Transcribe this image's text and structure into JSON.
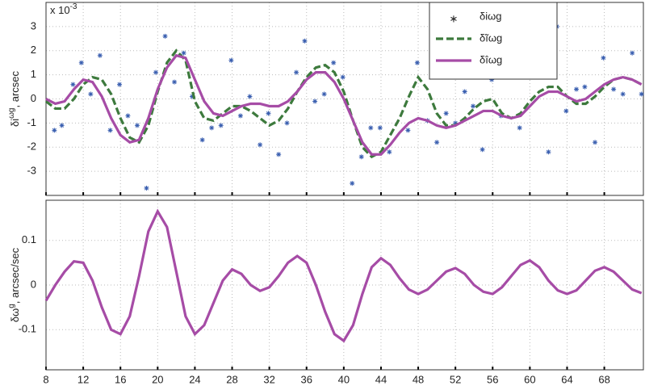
{
  "chart_data": [
    {
      "type": "line",
      "ylabel": {
        "base": "δi",
        "sup": "ωg",
        "rest": ", arcsec"
      },
      "multiplier": {
        "base": "x 10",
        "sup": "-3"
      },
      "x": [
        8,
        9,
        10,
        11,
        12,
        13,
        14,
        15,
        16,
        17,
        18,
        19,
        20,
        21,
        22,
        23,
        24,
        25,
        26,
        27,
        28,
        29,
        30,
        31,
        32,
        33,
        34,
        35,
        36,
        37,
        38,
        39,
        40,
        41,
        42,
        43,
        44,
        45,
        46,
        47,
        48,
        49,
        50,
        51,
        52,
        53,
        54,
        55,
        56,
        57,
        58,
        59,
        60,
        61,
        62,
        63,
        64,
        65,
        66,
        67,
        68,
        69,
        70,
        71,
        72
      ],
      "series": [
        {
          "name": "δiωg",
          "type": "scatter",
          "color": "#3a5fb0",
          "x": [
            8.9,
            9.7,
            10.9,
            11.8,
            12.8,
            13.8,
            14.9,
            15.9,
            16.8,
            17.8,
            18.8,
            19.8,
            20.8,
            21.8,
            22.8,
            23.7,
            24.8,
            25.8,
            26.8,
            27.9,
            28.9,
            29.9,
            31.0,
            31.9,
            33.0,
            33.9,
            34.9,
            35.8,
            36.9,
            37.9,
            38.9,
            39.9,
            40.9,
            41.9,
            42.9,
            43.9,
            44.9,
            46.9,
            47.9,
            49.0,
            50.0,
            51.0,
            52.0,
            53.0,
            53.9,
            54.9,
            55.9,
            56.9,
            58.9,
            60.0,
            62.0,
            62.9,
            63.9,
            65.0,
            65.9,
            67.0,
            67.9,
            69.0,
            70.0,
            71.0,
            72.0
          ],
          "values": [
            -1.3,
            -1.1,
            0.6,
            1.5,
            0.2,
            1.8,
            -1.3,
            0.6,
            -0.7,
            -1.1,
            -3.7,
            1.1,
            2.6,
            0.7,
            1.9,
            0.1,
            -1.7,
            -1.2,
            -1.1,
            1.6,
            -0.7,
            0.1,
            -1.9,
            -0.6,
            -2.3,
            -1.0,
            1.1,
            2.4,
            -0.1,
            0.2,
            1.5,
            0.9,
            -3.5,
            -2.4,
            -1.2,
            -1.2,
            -2.2,
            -1.3,
            1.5,
            -0.9,
            -1.8,
            -0.6,
            -1.0,
            0.3,
            -0.3,
            -2.1,
            0.8,
            -0.7,
            -1.2,
            1.1,
            -2.2,
            3.0,
            -0.5,
            0.4,
            0.5,
            -1.8,
            1.7,
            0.4,
            0.2,
            1.9,
            0.2
          ]
        },
        {
          "name": "δĩωg",
          "type": "line",
          "dash": true,
          "color": "#3d7a3d",
          "values": [
            -0.1,
            -0.4,
            -0.4,
            0,
            0.6,
            0.9,
            0.8,
            0.2,
            -0.8,
            -1.6,
            -1.8,
            -1.1,
            0.3,
            1.5,
            2.0,
            1.6,
            -0.1,
            -0.8,
            -0.9,
            -0.6,
            -0.3,
            -0.3,
            -0.5,
            -0.8,
            -1.1,
            -0.9,
            -0.4,
            0.3,
            0.9,
            1.3,
            1.4,
            1.1,
            0.3,
            -0.9,
            -2.0,
            -2.4,
            -2.2,
            -1.5,
            -0.8,
            0.1,
            0.9,
            0.4,
            -0.6,
            -1.1,
            -1.1,
            -0.8,
            -0.4,
            -0.1,
            0,
            -0.6,
            -0.8,
            -0.6,
            -0.1,
            0.3,
            0.5,
            0.5,
            0.1,
            -0.2,
            -0.2,
            0.1,
            0.5,
            0.8,
            0.9,
            0.8,
            0.6
          ]
        },
        {
          "name": "δîωg",
          "type": "line",
          "dash": false,
          "color": "#a64ca6",
          "values": [
            0,
            -0.2,
            -0.1,
            0.4,
            0.8,
            0.7,
            0.1,
            -0.8,
            -1.5,
            -1.8,
            -1.7,
            -0.8,
            0.4,
            1.3,
            1.8,
            1.7,
            0.8,
            -0.1,
            -0.6,
            -0.7,
            -0.5,
            -0.3,
            -0.2,
            -0.2,
            -0.3,
            -0.3,
            -0.1,
            0.3,
            0.8,
            1.1,
            1.1,
            0.7,
            0,
            -0.9,
            -1.8,
            -2.3,
            -2.3,
            -1.9,
            -1.4,
            -1.0,
            -0.8,
            -0.9,
            -1.1,
            -1.2,
            -1.1,
            -0.9,
            -0.7,
            -0.5,
            -0.5,
            -0.7,
            -0.8,
            -0.7,
            -0.3,
            0.1,
            0.3,
            0.3,
            0.1,
            -0.1,
            0,
            0.3,
            0.6,
            0.8,
            0.9,
            0.8,
            0.6
          ]
        }
      ],
      "xlim": [
        8,
        72.2
      ],
      "xticks": [
        8,
        12,
        16,
        20,
        24,
        28,
        32,
        36,
        40,
        44,
        48,
        52,
        56,
        60,
        64,
        68
      ],
      "ylim": [
        -4,
        4
      ],
      "yticks": [
        -3,
        -2,
        -1,
        0,
        1,
        2,
        3
      ],
      "grid": true,
      "legend": "top-right"
    },
    {
      "type": "line",
      "ylabel": {
        "base": "δω",
        "sup": "g",
        "rest": ", arcsec/sec"
      },
      "x": [
        8,
        9,
        10,
        11,
        12,
        13,
        14,
        15,
        16,
        17,
        18,
        19,
        20,
        21,
        22,
        23,
        24,
        25,
        26,
        27,
        28,
        29,
        30,
        31,
        32,
        33,
        34,
        35,
        36,
        37,
        38,
        39,
        40,
        41,
        42,
        43,
        44,
        45,
        46,
        47,
        48,
        49,
        50,
        51,
        52,
        53,
        54,
        55,
        56,
        57,
        58,
        59,
        60,
        61,
        62,
        63,
        64,
        65,
        66,
        67,
        68,
        69,
        70,
        71,
        72
      ],
      "series": [
        {
          "type": "line",
          "dash": false,
          "color": "#a64ca6",
          "values": [
            -0.035,
            0,
            0.03,
            0.053,
            0.05,
            0.01,
            -0.05,
            -0.1,
            -0.11,
            -0.07,
            0.02,
            0.12,
            0.165,
            0.13,
            0.03,
            -0.07,
            -0.11,
            -0.09,
            -0.04,
            0.01,
            0.035,
            0.025,
            0,
            -0.013,
            -0.005,
            0.02,
            0.05,
            0.065,
            0.05,
            0,
            -0.06,
            -0.11,
            -0.125,
            -0.09,
            -0.02,
            0.04,
            0.06,
            0.045,
            0.015,
            -0.01,
            -0.02,
            -0.01,
            0.01,
            0.03,
            0.038,
            0.025,
            0,
            -0.015,
            -0.02,
            -0.005,
            0.02,
            0.045,
            0.055,
            0.04,
            0.01,
            -0.012,
            -0.02,
            -0.012,
            0.01,
            0.032,
            0.04,
            0.03,
            0.01,
            -0.01,
            -0.018
          ]
        }
      ],
      "xlim": [
        8,
        72.2
      ],
      "xticks": [
        8,
        12,
        16,
        20,
        24,
        28,
        32,
        36,
        40,
        44,
        48,
        52,
        56,
        60,
        64,
        68
      ],
      "ylim": [
        -0.19,
        0.19
      ],
      "yticks": [
        -0.1,
        0,
        0.1
      ],
      "grid": true
    }
  ]
}
